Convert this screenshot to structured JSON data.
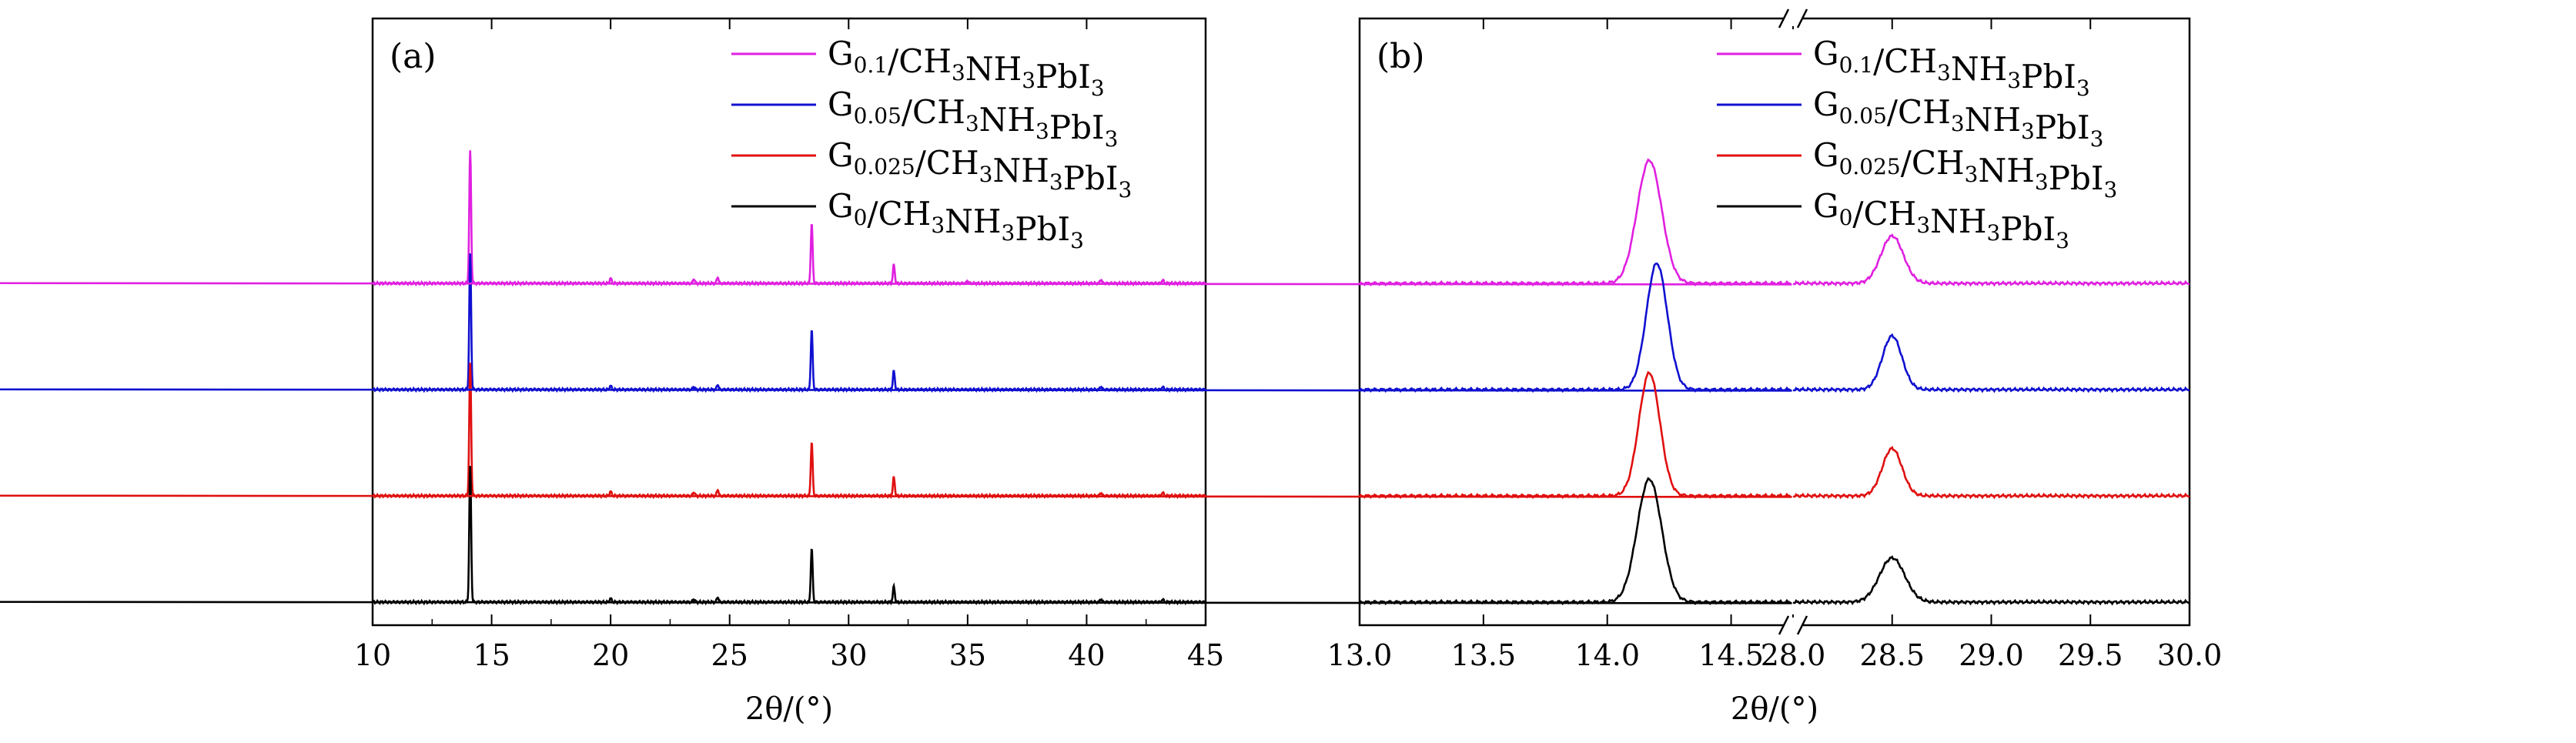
{
  "chart_data": [
    {
      "type": "line",
      "panel_label": "(a)",
      "xlabel": "2θ/(°)",
      "ylabel": "",
      "xlim": [
        10,
        45
      ],
      "x_ticks": [
        "10",
        "15",
        "20",
        "25",
        "30",
        "35",
        "40",
        "45"
      ],
      "grid": false,
      "legend_position": "top-right",
      "series": [
        {
          "name": "G0.1/CH3NH3PbI3",
          "name_parts": [
            [
              "G",
              ""
            ],
            [
              "0.1",
              "sub"
            ],
            [
              "/CH",
              ""
            ],
            [
              "3",
              "sub"
            ],
            [
              "NH",
              ""
            ],
            [
              "3",
              "sub"
            ],
            [
              "PbI",
              ""
            ],
            [
              "3",
              "sub"
            ]
          ],
          "color": "#e020e0",
          "baseline": 3,
          "peaks": [
            [
              14.1,
              2.1
            ],
            [
              20.0,
              0.08
            ],
            [
              23.5,
              0.07
            ],
            [
              24.5,
              0.1
            ],
            [
              28.45,
              0.95
            ],
            [
              31.9,
              0.3
            ],
            [
              35.0,
              0.04
            ],
            [
              40.6,
              0.06
            ],
            [
              43.2,
              0.05
            ]
          ]
        },
        {
          "name": "G0.05/CH3NH3PbI3",
          "name_parts": [
            [
              "G",
              ""
            ],
            [
              "0.05",
              "sub"
            ],
            [
              "/CH",
              ""
            ],
            [
              "3",
              "sub"
            ],
            [
              "NH",
              ""
            ],
            [
              "3",
              "sub"
            ],
            [
              "PbI",
              ""
            ],
            [
              "3",
              "sub"
            ]
          ],
          "color": "#1010d0",
          "baseline": 2,
          "peaks": [
            [
              14.1,
              2.15
            ],
            [
              20.0,
              0.06
            ],
            [
              23.5,
              0.05
            ],
            [
              24.5,
              0.08
            ],
            [
              28.45,
              0.95
            ],
            [
              31.9,
              0.3
            ],
            [
              40.6,
              0.05
            ],
            [
              43.2,
              0.04
            ]
          ]
        },
        {
          "name": "G0.025/CH3NH3PbI3",
          "name_parts": [
            [
              "G",
              ""
            ],
            [
              "0.025",
              "sub"
            ],
            [
              "/CH",
              ""
            ],
            [
              "3",
              "sub"
            ],
            [
              "NH",
              ""
            ],
            [
              "3",
              "sub"
            ],
            [
              "PbI",
              ""
            ],
            [
              "3",
              "sub"
            ]
          ],
          "color": "#e01010",
          "baseline": 1,
          "peaks": [
            [
              14.1,
              2.1
            ],
            [
              20.0,
              0.07
            ],
            [
              23.5,
              0.06
            ],
            [
              24.5,
              0.1
            ],
            [
              28.45,
              0.85
            ],
            [
              31.9,
              0.3
            ],
            [
              40.6,
              0.05
            ],
            [
              43.2,
              0.05
            ]
          ]
        },
        {
          "name": "G0/CH3NH3PbI3",
          "name_parts": [
            [
              "G",
              ""
            ],
            [
              "0",
              "sub"
            ],
            [
              "/CH",
              ""
            ],
            [
              "3",
              "sub"
            ],
            [
              "NH",
              ""
            ],
            [
              "3",
              "sub"
            ],
            [
              "PbI",
              ""
            ],
            [
              "3",
              "sub"
            ]
          ],
          "color": "#000000",
          "baseline": 0,
          "peaks": [
            [
              14.1,
              2.15
            ],
            [
              20.0,
              0.06
            ],
            [
              23.5,
              0.05
            ],
            [
              24.5,
              0.08
            ],
            [
              28.45,
              0.85
            ],
            [
              31.9,
              0.25
            ],
            [
              40.6,
              0.05
            ],
            [
              43.2,
              0.04
            ]
          ]
        }
      ]
    },
    {
      "type": "line",
      "panel_label": "(b)",
      "xlabel": "2θ/(°)",
      "ylabel": "",
      "x_break": true,
      "x_segments": [
        [
          13.0,
          14.75
        ],
        [
          28.0,
          30.0
        ]
      ],
      "x_ticks": [
        "13.0",
        "13.5",
        "14.0",
        "14.5",
        "28.0",
        "28.5",
        "29.0",
        "29.5",
        "30.0"
      ],
      "grid": false,
      "legend_position": "top-right",
      "series": [
        {
          "name": "G0.1/CH3NH3PbI3",
          "color": "#e020e0",
          "baseline": 3,
          "peaks": [
            [
              14.17,
              1.95,
              0.07
            ],
            [
              28.5,
              0.75,
              0.08
            ]
          ]
        },
        {
          "name": "G0.05/CH3NH3PbI3",
          "color": "#1010d0",
          "baseline": 2,
          "peaks": [
            [
              14.2,
              2.0,
              0.06
            ],
            [
              28.5,
              0.85,
              0.07
            ]
          ]
        },
        {
          "name": "G0.025/CH3NH3PbI3",
          "color": "#e01010",
          "baseline": 1,
          "peaks": [
            [
              14.17,
              1.95,
              0.06
            ],
            [
              28.5,
              0.75,
              0.07
            ]
          ]
        },
        {
          "name": "G0/CH3NH3PbI3",
          "color": "#000000",
          "baseline": 0,
          "peaks": [
            [
              14.17,
              1.95,
              0.07
            ],
            [
              28.5,
              0.7,
              0.09
            ]
          ]
        }
      ]
    }
  ]
}
